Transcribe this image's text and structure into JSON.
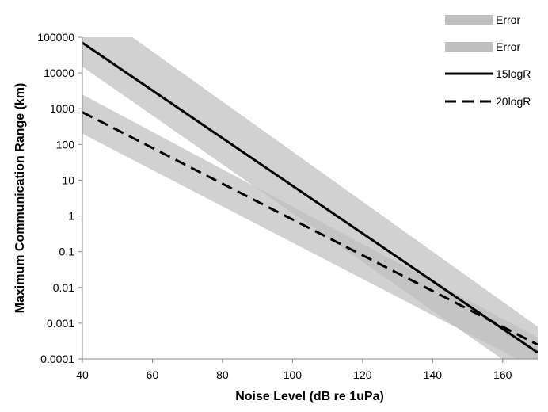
{
  "chart_data": {
    "type": "line",
    "xlabel": "Noise Level (dB re 1uPa)",
    "ylabel": "Maximum Communication Range (km)",
    "xlim": [
      40,
      170
    ],
    "ylim": [
      0.0001,
      100000
    ],
    "y_scale": "log",
    "grid": false,
    "legend_position": "top-right",
    "x_ticks": [
      "40",
      "60",
      "80",
      "100",
      "120",
      "140",
      "160"
    ],
    "x_tick_values": [
      40,
      60,
      80,
      100,
      120,
      140,
      160
    ],
    "y_ticks": [
      "100000",
      "10000",
      "1000",
      "100",
      "10",
      "1",
      "0.1",
      "0.01",
      "0.001",
      "0.0001"
    ],
    "y_tick_values": [
      100000,
      10000,
      1000,
      100,
      10,
      1,
      0.1,
      0.01,
      0.001,
      0.0001
    ],
    "series": [
      {
        "name": "Error",
        "kind": "band",
        "color": "#bfbfbf",
        "x": [
          40,
          170
        ],
        "upper": [
          1000000,
          0.0008
        ],
        "lower": [
          15000,
          2e-05
        ]
      },
      {
        "name": "Error",
        "kind": "band",
        "color": "#bfbfbf",
        "x": [
          40,
          170
        ],
        "upper": [
          2500,
          0.0004
        ],
        "lower": [
          200,
          5e-05
        ]
      },
      {
        "name": "15logR",
        "kind": "line",
        "style": "solid",
        "color": "#000000",
        "x": [
          40,
          170
        ],
        "y": [
          70000,
          0.00015
        ]
      },
      {
        "name": "20logR",
        "kind": "line",
        "style": "dashed",
        "color": "#000000",
        "x": [
          40,
          170
        ],
        "y": [
          800,
          0.00025
        ]
      }
    ]
  }
}
